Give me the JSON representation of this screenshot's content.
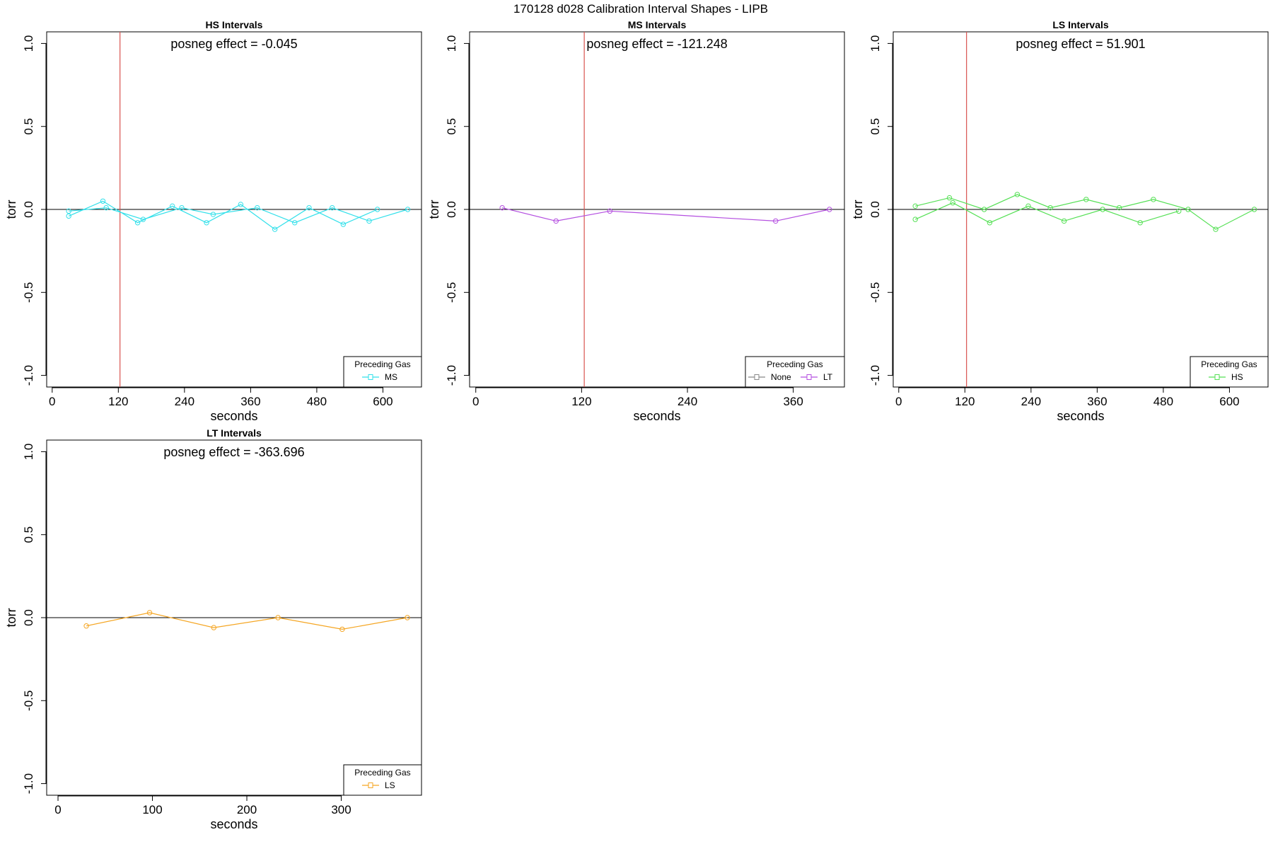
{
  "figure": {
    "title": "170128   d028   Calibration Interval Shapes - LIPB"
  },
  "chart_data": [
    {
      "type": "line",
      "title": "HS Intervals",
      "xlabel": "seconds",
      "ylabel": "torr",
      "xlim": [
        -10,
        670
      ],
      "ylim": [
        -1.07,
        1.07
      ],
      "xticks": [
        0,
        120,
        240,
        360,
        480,
        600
      ],
      "yticks": [
        -1.0,
        -0.5,
        0.0,
        0.5,
        1.0
      ],
      "ytick_labels": [
        "-1.0",
        "-0.5",
        "0.0",
        "0.5",
        "1.0"
      ],
      "vline_x": 123,
      "hline_y": 0,
      "annotation": "posneg effect = -0.045",
      "legend": {
        "title": "Preceding Gas",
        "position": "bottom-right"
      },
      "series": [
        {
          "name": "MS",
          "color": "#33e0ea",
          "points": [
            [
              30,
              -0.04
            ],
            [
              92,
              0.05
            ],
            [
              155,
              -0.08
            ],
            [
              218,
              0.02
            ],
            [
              280,
              -0.08
            ],
            [
              342,
              0.03
            ],
            [
              404,
              -0.12
            ],
            [
              466,
              0.01
            ],
            [
              528,
              -0.09
            ],
            [
              590,
              0.0
            ]
          ]
        },
        {
          "name": "MS",
          "color": "#33e0ea",
          "in_legend": false,
          "points": [
            [
              30,
              -0.01
            ],
            [
              98,
              0.01
            ],
            [
              165,
              -0.06
            ],
            [
              235,
              0.01
            ],
            [
              292,
              -0.03
            ],
            [
              372,
              0.01
            ],
            [
              440,
              -0.08
            ],
            [
              508,
              0.01
            ],
            [
              575,
              -0.07
            ],
            [
              645,
              0.0
            ]
          ]
        }
      ]
    },
    {
      "type": "line",
      "title": "MS Intervals",
      "xlabel": "seconds",
      "ylabel": "torr",
      "xlim": [
        -7,
        418
      ],
      "ylim": [
        -1.07,
        1.07
      ],
      "xticks": [
        0,
        120,
        240,
        360
      ],
      "yticks": [
        -1.0,
        -0.5,
        0.0,
        0.5,
        1.0
      ],
      "ytick_labels": [
        "-1.0",
        "-0.5",
        "0.0",
        "0.5",
        "1.0"
      ],
      "vline_x": 123,
      "hline_y": 0,
      "annotation": "posneg effect = -121.248",
      "legend": {
        "title": "Preceding Gas",
        "position": "bottom-right"
      },
      "series": [
        {
          "name": "None",
          "color": "#888888",
          "points": []
        },
        {
          "name": "LT",
          "color": "#b44fe0",
          "points": [
            [
              30,
              0.01
            ],
            [
              91,
              -0.07
            ],
            [
              152,
              -0.01
            ],
            [
              340,
              -0.07
            ],
            [
              401,
              0.0
            ]
          ]
        }
      ]
    },
    {
      "type": "line",
      "title": "LS Intervals",
      "xlabel": "seconds",
      "ylabel": "torr",
      "xlim": [
        -10,
        670
      ],
      "ylim": [
        -1.07,
        1.07
      ],
      "xticks": [
        0,
        120,
        240,
        360,
        480,
        600
      ],
      "yticks": [
        -1.0,
        -0.5,
        0.0,
        0.5,
        1.0
      ],
      "ytick_labels": [
        "-1.0",
        "-0.5",
        "0.0",
        "0.5",
        "1.0"
      ],
      "vline_x": 123,
      "hline_y": 0,
      "annotation": "posneg effect = 51.901",
      "legend": {
        "title": "Preceding Gas",
        "position": "bottom-right"
      },
      "series": [
        {
          "name": "HS",
          "color": "#55e055",
          "points": [
            [
              30,
              0.02
            ],
            [
              92,
              0.07
            ],
            [
              155,
              0.0
            ],
            [
              215,
              0.09
            ],
            [
              275,
              0.01
            ],
            [
              340,
              0.06
            ],
            [
              400,
              0.01
            ],
            [
              462,
              0.06
            ],
            [
              525,
              0.0
            ],
            [
              575,
              -0.12
            ],
            [
              645,
              0.0
            ]
          ]
        },
        {
          "name": "HS",
          "color": "#55e055",
          "in_legend": false,
          "points": [
            [
              30,
              -0.06
            ],
            [
              98,
              0.04
            ],
            [
              165,
              -0.08
            ],
            [
              235,
              0.02
            ],
            [
              300,
              -0.07
            ],
            [
              370,
              0.0
            ],
            [
              438,
              -0.08
            ],
            [
              508,
              -0.01
            ]
          ]
        }
      ]
    },
    {
      "type": "line",
      "title": "LT Intervals",
      "xlabel": "seconds",
      "ylabel": "torr",
      "xlim": [
        -12,
        385
      ],
      "ylim": [
        -1.07,
        1.07
      ],
      "xticks": [
        0,
        100,
        200,
        300
      ],
      "yticks": [
        -1.0,
        -0.5,
        0.0,
        0.5,
        1.0
      ],
      "ytick_labels": [
        "-1.0",
        "-0.5",
        "0.0",
        "0.5",
        "1.0"
      ],
      "hline_y": 0,
      "annotation": "posneg effect = -363.696",
      "legend": {
        "title": "Preceding Gas",
        "position": "bottom-right"
      },
      "series": [
        {
          "name": "LS",
          "color": "#f5a623",
          "points": [
            [
              30,
              -0.05
            ],
            [
              97,
              0.03
            ],
            [
              165,
              -0.06
            ],
            [
              233,
              0.0
            ],
            [
              301,
              -0.07
            ],
            [
              370,
              0.0
            ]
          ]
        }
      ]
    }
  ]
}
